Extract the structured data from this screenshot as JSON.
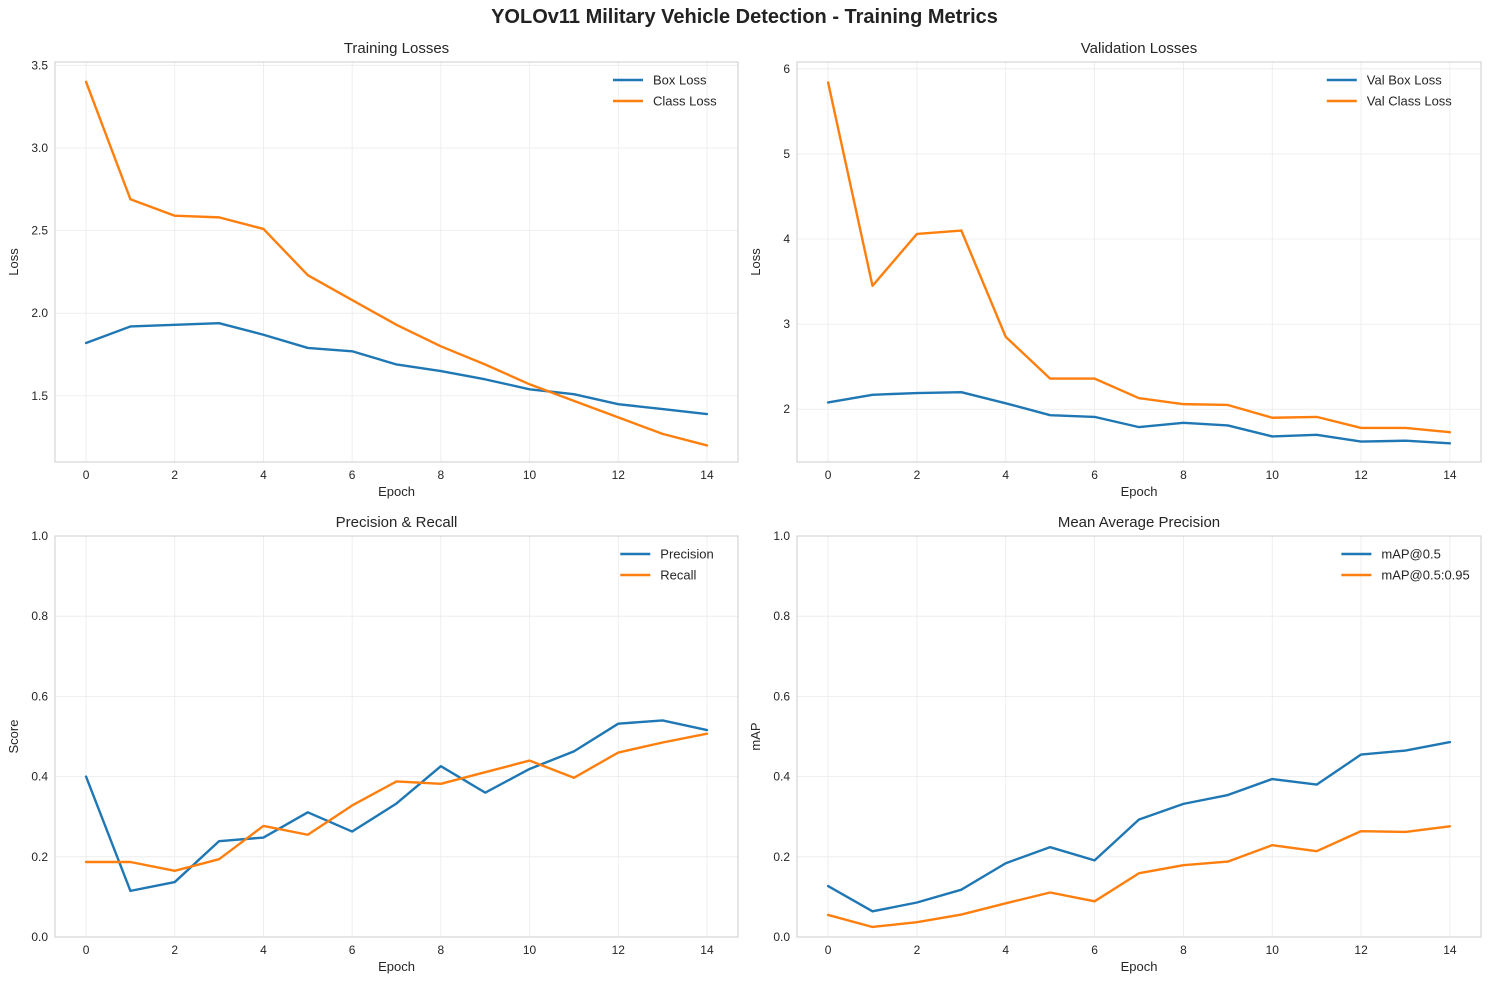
{
  "figure": {
    "title": "YOLOv11 Military Vehicle Detection - Training Metrics"
  },
  "chart_data": [
    {
      "type": "line",
      "title": "Training Losses",
      "xlabel": "Epoch",
      "ylabel": "Loss",
      "xlim": [
        -0.7,
        14.7
      ],
      "ylim": [
        1.1,
        3.52
      ],
      "xticks": [
        0,
        2,
        4,
        6,
        8,
        10,
        12,
        14
      ],
      "yticks": [
        1.5,
        2.0,
        2.5,
        3.0,
        3.5
      ],
      "ytick_labels": [
        "1.5",
        "2.0",
        "2.5",
        "3.0",
        "3.5"
      ],
      "grid": true,
      "legend": "upper-right",
      "x": [
        0,
        1,
        2,
        3,
        4,
        5,
        6,
        7,
        8,
        9,
        10,
        11,
        12,
        13,
        14
      ],
      "series": [
        {
          "name": "Box Loss",
          "color": "#1f77b4",
          "values": [
            1.82,
            1.92,
            1.93,
            1.94,
            1.87,
            1.79,
            1.77,
            1.69,
            1.65,
            1.6,
            1.54,
            1.51,
            1.45,
            1.42,
            1.39
          ]
        },
        {
          "name": "Class Loss",
          "color": "#ff7f0e",
          "values": [
            3.4,
            2.69,
            2.59,
            2.58,
            2.51,
            2.23,
            2.08,
            1.93,
            1.8,
            1.69,
            1.57,
            1.47,
            1.37,
            1.27,
            1.2
          ]
        }
      ]
    },
    {
      "type": "line",
      "title": "Validation Losses",
      "xlabel": "Epoch",
      "ylabel": "Loss",
      "xlim": [
        -0.7,
        14.7
      ],
      "ylim": [
        1.38,
        6.08
      ],
      "xticks": [
        0,
        2,
        4,
        6,
        8,
        10,
        12,
        14
      ],
      "yticks": [
        2,
        3,
        4,
        5,
        6
      ],
      "ytick_labels": [
        "2",
        "3",
        "4",
        "5",
        "6"
      ],
      "grid": true,
      "legend": "upper-right",
      "x": [
        0,
        1,
        2,
        3,
        4,
        5,
        6,
        7,
        8,
        9,
        10,
        11,
        12,
        13,
        14
      ],
      "series": [
        {
          "name": "Val Box Loss",
          "color": "#1f77b4",
          "values": [
            2.08,
            2.17,
            2.19,
            2.2,
            2.07,
            1.93,
            1.91,
            1.79,
            1.84,
            1.81,
            1.68,
            1.7,
            1.62,
            1.63,
            1.6
          ]
        },
        {
          "name": "Val Class Loss",
          "color": "#ff7f0e",
          "values": [
            5.84,
            3.45,
            4.06,
            4.1,
            2.85,
            2.36,
            2.36,
            2.13,
            2.06,
            2.05,
            1.9,
            1.91,
            1.78,
            1.78,
            1.73
          ]
        }
      ]
    },
    {
      "type": "line",
      "title": "Precision & Recall",
      "xlabel": "Epoch",
      "ylabel": "Score",
      "xlim": [
        -0.7,
        14.7
      ],
      "ylim": [
        0,
        1
      ],
      "xticks": [
        0,
        2,
        4,
        6,
        8,
        10,
        12,
        14
      ],
      "yticks": [
        0,
        0.2,
        0.4,
        0.6,
        0.8,
        1.0
      ],
      "ytick_labels": [
        "0.0",
        "0.2",
        "0.4",
        "0.6",
        "0.8",
        "1.0"
      ],
      "grid": true,
      "legend": "upper-right",
      "x": [
        0,
        1,
        2,
        3,
        4,
        5,
        6,
        7,
        8,
        9,
        10,
        11,
        12,
        13,
        14
      ],
      "series": [
        {
          "name": "Precision",
          "color": "#1f77b4",
          "values": [
            0.4,
            0.115,
            0.137,
            0.239,
            0.248,
            0.311,
            0.263,
            0.333,
            0.426,
            0.36,
            0.419,
            0.463,
            0.532,
            0.54,
            0.516
          ]
        },
        {
          "name": "Recall",
          "color": "#ff7f0e",
          "values": [
            0.187,
            0.187,
            0.165,
            0.194,
            0.277,
            0.255,
            0.328,
            0.388,
            0.382,
            0.411,
            0.44,
            0.397,
            0.46,
            0.485,
            0.507
          ]
        }
      ]
    },
    {
      "type": "line",
      "title": "Mean Average Precision",
      "xlabel": "Epoch",
      "ylabel": "mAP",
      "xlim": [
        -0.7,
        14.7
      ],
      "ylim": [
        0,
        1
      ],
      "xticks": [
        0,
        2,
        4,
        6,
        8,
        10,
        12,
        14
      ],
      "yticks": [
        0,
        0.2,
        0.4,
        0.6,
        0.8,
        1.0
      ],
      "ytick_labels": [
        "0.0",
        "0.2",
        "0.4",
        "0.6",
        "0.8",
        "1.0"
      ],
      "grid": true,
      "legend": "upper-right",
      "x": [
        0,
        1,
        2,
        3,
        4,
        5,
        6,
        7,
        8,
        9,
        10,
        11,
        12,
        13,
        14
      ],
      "series": [
        {
          "name": "mAP@0.5",
          "color": "#1f77b4",
          "values": [
            0.127,
            0.064,
            0.086,
            0.118,
            0.184,
            0.224,
            0.191,
            0.293,
            0.332,
            0.354,
            0.394,
            0.38,
            0.455,
            0.465,
            0.486
          ]
        },
        {
          "name": "mAP@0.5:0.95",
          "color": "#ff7f0e",
          "values": [
            0.055,
            0.025,
            0.037,
            0.056,
            0.084,
            0.111,
            0.089,
            0.159,
            0.179,
            0.188,
            0.229,
            0.214,
            0.264,
            0.262,
            0.276
          ]
        }
      ]
    }
  ]
}
